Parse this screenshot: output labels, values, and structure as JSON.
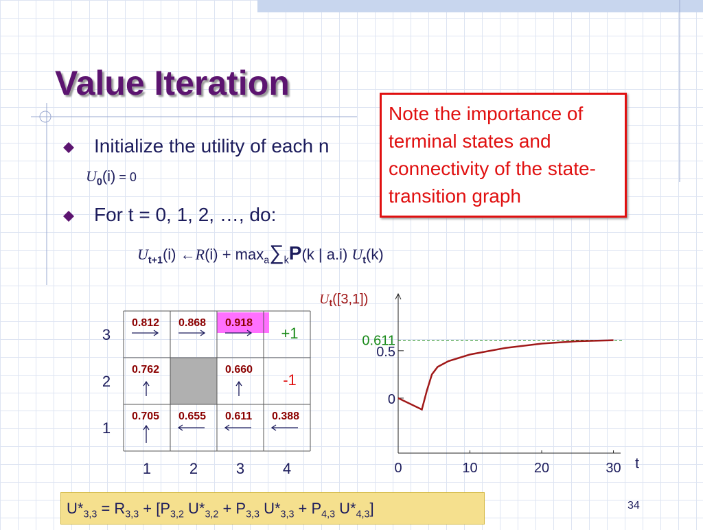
{
  "title": "Value Iteration",
  "note": "Note the importance of terminal states and connectivity of the state-transition graph",
  "bullets": [
    "Initialize the utility of each n",
    "For t = 0, 1, 2, …, do:"
  ],
  "formula_init": [
    "U",
    "0",
    "(i)",
    " = 0"
  ],
  "formula_update": [
    "U",
    "t+1",
    "(i) ",
    "←",
    "R",
    "(i) + max",
    "a",
    "∑",
    "k",
    "P",
    "(k | a.i) ",
    "U",
    "t",
    "(k)"
  ],
  "grid": {
    "rows": [
      {
        "label": "3",
        "cells": [
          "0.812",
          "0.868",
          "0.918",
          "+1"
        ]
      },
      {
        "label": "2",
        "cells": [
          "0.762",
          null,
          "0.660",
          "-1"
        ]
      },
      {
        "label": "1",
        "cells": [
          "0.705",
          "0.655",
          "0.611",
          "0.388"
        ]
      }
    ],
    "columns": [
      "1",
      "2",
      "3",
      "4"
    ]
  },
  "chart_data": {
    "type": "line",
    "ylabel": [
      "U",
      "t",
      "([3,1])"
    ],
    "xlabel": "t",
    "x": [
      0,
      3.3,
      4,
      4.7,
      5.5,
      7,
      10,
      15,
      20,
      25,
      30
    ],
    "values": [
      0,
      -0.12,
      0.08,
      0.25,
      0.33,
      0.39,
      0.46,
      0.53,
      0.575,
      0.6,
      0.61
    ],
    "color": "#a01818",
    "xlim": [
      0,
      31
    ],
    "ylim": [
      -0.58,
      1.1
    ],
    "xticks": [
      0,
      10,
      20,
      30
    ],
    "yticks": [
      0,
      0.5
    ],
    "reference": {
      "value": 0.611,
      "color": "#1a8a1a"
    }
  },
  "footer_formula": [
    [
      "U*",
      "3,3"
    ],
    [
      " = R",
      "3,3"
    ],
    [
      " + [P",
      "3,2"
    ],
    [
      " U*",
      "3,2"
    ],
    [
      " + P",
      "3,3"
    ],
    [
      " U*",
      "3,3"
    ],
    [
      " + P",
      "4,3"
    ],
    [
      " U*",
      "4,3"
    ],
    [
      "]",
      null
    ]
  ],
  "page_number": "34"
}
